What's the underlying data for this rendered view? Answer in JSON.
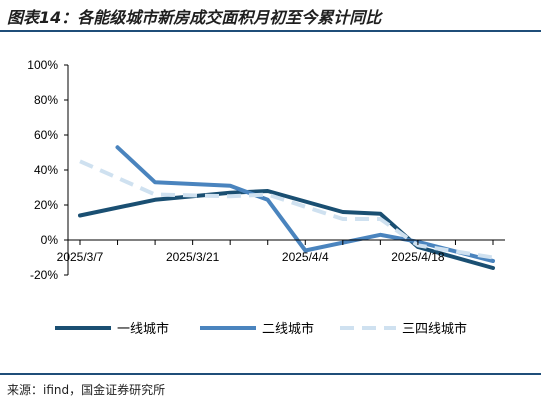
{
  "title": "图表14：各能级城市新房成交面积月初至今累计同比",
  "source": "来源：ifind，国金证券研究所",
  "chart_data": {
    "type": "line",
    "ylim": [
      -20,
      100
    ],
    "yticks": [
      "100%",
      "80%",
      "60%",
      "40%",
      "20%",
      "0%",
      "-20%"
    ],
    "ytick_values": [
      100,
      80,
      60,
      40,
      20,
      0,
      -20
    ],
    "xtick_labels": [
      "2025/3/7",
      "2025/3/21",
      "2025/4/4",
      "2025/4/18"
    ],
    "xtick_index": [
      0,
      3,
      6,
      9
    ],
    "n_points": 12,
    "series": [
      {
        "name": "一线城市",
        "color": "#1a4f72",
        "dash": "",
        "width": 4,
        "values": [
          14,
          23,
          27,
          28,
          16,
          15,
          -4,
          -16
        ]
      },
      {
        "name": "二线城市",
        "color": "#4a84be",
        "dash": "",
        "width": 4,
        "values": [
          53,
          33,
          31,
          23,
          -6,
          3,
          -1,
          -12
        ]
      },
      {
        "name": "三四线城市",
        "color": "#cfe1f0",
        "dash": "14,8",
        "width": 4,
        "values": [
          45,
          26,
          25,
          26,
          12,
          12,
          -3,
          -10
        ]
      }
    ],
    "series_x_index": [
      [
        0,
        2,
        4,
        5,
        7,
        8,
        9,
        11
      ],
      [
        1,
        2,
        4,
        5,
        6,
        8,
        9,
        11
      ],
      [
        0,
        2,
        4,
        5,
        7,
        8,
        9,
        11
      ]
    ]
  }
}
